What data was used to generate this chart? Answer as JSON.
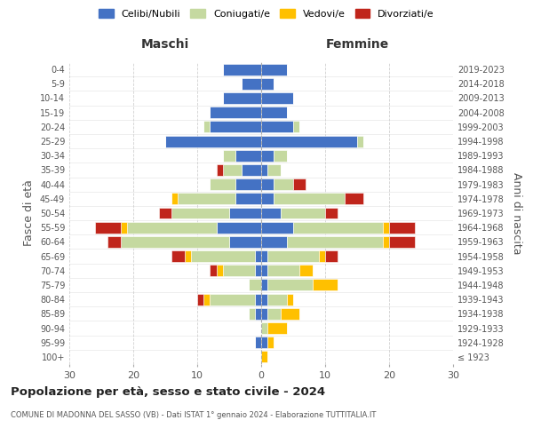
{
  "age_groups": [
    "100+",
    "95-99",
    "90-94",
    "85-89",
    "80-84",
    "75-79",
    "70-74",
    "65-69",
    "60-64",
    "55-59",
    "50-54",
    "45-49",
    "40-44",
    "35-39",
    "30-34",
    "25-29",
    "20-24",
    "15-19",
    "10-14",
    "5-9",
    "0-4"
  ],
  "birth_years": [
    "≤ 1923",
    "1924-1928",
    "1929-1933",
    "1934-1938",
    "1939-1943",
    "1944-1948",
    "1949-1953",
    "1954-1958",
    "1959-1963",
    "1964-1968",
    "1969-1973",
    "1974-1978",
    "1979-1983",
    "1984-1988",
    "1989-1993",
    "1994-1998",
    "1999-2003",
    "2004-2008",
    "2009-2013",
    "2014-2018",
    "2019-2023"
  ],
  "colors": {
    "celibi": "#4472c4",
    "coniugati": "#c5d9a0",
    "vedovi": "#ffc000",
    "divorziati": "#c0251b"
  },
  "maschi": {
    "celibi": [
      0,
      1,
      0,
      1,
      1,
      0,
      1,
      1,
      5,
      7,
      5,
      4,
      4,
      3,
      4,
      15,
      8,
      8,
      6,
      3,
      6
    ],
    "coniugati": [
      0,
      0,
      0,
      1,
      7,
      2,
      5,
      10,
      17,
      14,
      9,
      9,
      4,
      3,
      2,
      0,
      1,
      0,
      0,
      0,
      0
    ],
    "vedovi": [
      0,
      0,
      0,
      0,
      1,
      0,
      1,
      1,
      0,
      1,
      0,
      1,
      0,
      0,
      0,
      0,
      0,
      0,
      0,
      0,
      0
    ],
    "divorziati": [
      0,
      0,
      0,
      0,
      1,
      0,
      1,
      2,
      2,
      4,
      2,
      0,
      0,
      1,
      0,
      0,
      0,
      0,
      0,
      0,
      0
    ]
  },
  "femmine": {
    "celibi": [
      0,
      1,
      0,
      1,
      1,
      1,
      1,
      1,
      4,
      5,
      3,
      2,
      2,
      1,
      2,
      15,
      5,
      4,
      5,
      2,
      4
    ],
    "coniugati": [
      0,
      0,
      1,
      2,
      3,
      7,
      5,
      8,
      15,
      14,
      7,
      11,
      3,
      2,
      2,
      1,
      1,
      0,
      0,
      0,
      0
    ],
    "vedovi": [
      1,
      1,
      3,
      3,
      1,
      4,
      2,
      1,
      1,
      1,
      0,
      0,
      0,
      0,
      0,
      0,
      0,
      0,
      0,
      0,
      0
    ],
    "divorziati": [
      0,
      0,
      0,
      0,
      0,
      0,
      0,
      2,
      4,
      4,
      2,
      3,
      2,
      0,
      0,
      0,
      0,
      0,
      0,
      0,
      0
    ]
  },
  "xlim": 30,
  "title": "Popolazione per età, sesso e stato civile - 2024",
  "subtitle": "COMUNE DI MADONNA DEL SASSO (VB) - Dati ISTAT 1° gennaio 2024 - Elaborazione TUTTITALIA.IT",
  "xlabel_left": "Maschi",
  "xlabel_right": "Femmine",
  "ylabel_left": "Fasce di età",
  "ylabel_right": "Anni di nascita",
  "legend_labels": [
    "Celibi/Nubili",
    "Coniugati/e",
    "Vedovi/e",
    "Divorziati/e"
  ],
  "background_color": "#ffffff",
  "grid_color": "#cccccc"
}
